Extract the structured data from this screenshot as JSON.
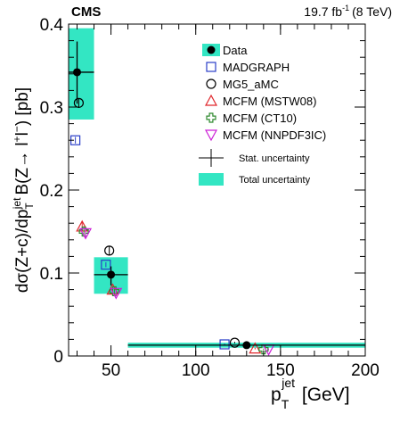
{
  "header": {
    "experiment": "CMS",
    "luminosity_text": "19.7 fb",
    "luminosity_exp": "-1",
    "energy_text": "(8 TeV)"
  },
  "chart_data": {
    "type": "scatter",
    "xlim": [
      25,
      200
    ],
    "ylim": [
      0,
      0.4
    ],
    "x_ticks": [
      50,
      100,
      150,
      200
    ],
    "y_ticks": [
      0,
      0.1,
      0.2,
      0.3,
      0.4
    ],
    "xlabel": {
      "base": "p",
      "sub": "T",
      "sup": "jet",
      "unit": " [GeV]"
    },
    "ylabel": "dσ(Z+c)/dp T jet B(Z→ l+l−) [pb]",
    "grid": false,
    "legend_position": "top-right",
    "colors": {
      "band": "#33e6c3",
      "madgraph": "#2a3ec8",
      "mg5": "#000000",
      "mstw": "#e0262b",
      "ct10": "#2f8a2f",
      "nnpdf": "#cc1fd6"
    },
    "data": {
      "name": "Data",
      "points": [
        {
          "x": 30,
          "xerr": [
            25,
            40
          ],
          "y": 0.342,
          "stat": [
            0.304,
            0.379
          ],
          "total": [
            0.285,
            0.395
          ]
        },
        {
          "x": 50,
          "xerr": [
            40,
            60
          ],
          "y": 0.098,
          "stat": [
            0.085,
            0.108
          ],
          "total": [
            0.075,
            0.119
          ]
        },
        {
          "x": 130,
          "xerr": [
            60,
            200
          ],
          "y": 0.013,
          "stat": [
            0.011,
            0.015
          ],
          "total": [
            0.01,
            0.016
          ]
        }
      ]
    },
    "predictions": [
      {
        "name": "MADGRAPH",
        "marker": "square",
        "color_key": "madgraph",
        "x": [
          29,
          47,
          117
        ],
        "y": [
          0.26,
          0.11,
          0.014
        ],
        "err": [
          0.004,
          0.003,
          0.001
        ]
      },
      {
        "name": "MG5_aMC",
        "marker": "circle",
        "color_key": "mg5",
        "x": [
          31,
          49,
          123
        ],
        "y": [
          0.305,
          0.127,
          0.016
        ],
        "err": [
          0.005,
          0.005,
          0.001
        ]
      },
      {
        "name": "MCFM (MSTW08)",
        "marker": "triangle-up",
        "color_key": "mstw",
        "x": [
          33,
          51,
          135
        ],
        "y": [
          0.156,
          0.08,
          0.009
        ],
        "err": [
          0.006,
          0.004,
          0.001
        ]
      },
      {
        "name": "MCFM (CT10)",
        "marker": "cross",
        "color_key": "ct10",
        "x": [
          34,
          52,
          140
        ],
        "y": [
          0.15,
          0.078,
          0.008
        ],
        "err": [
          0.006,
          0.004,
          0.001
        ]
      },
      {
        "name": "MCFM (NNPDF3IC)",
        "marker": "triangle-down",
        "color_key": "nnpdf",
        "x": [
          35,
          53,
          143
        ],
        "y": [
          0.148,
          0.076,
          0.008
        ],
        "err": [
          0.006,
          0.004,
          0.001
        ]
      }
    ],
    "legend": {
      "data_label": "Data",
      "stat_label": "Stat. uncertainty",
      "total_label": "Total uncertainty"
    }
  }
}
